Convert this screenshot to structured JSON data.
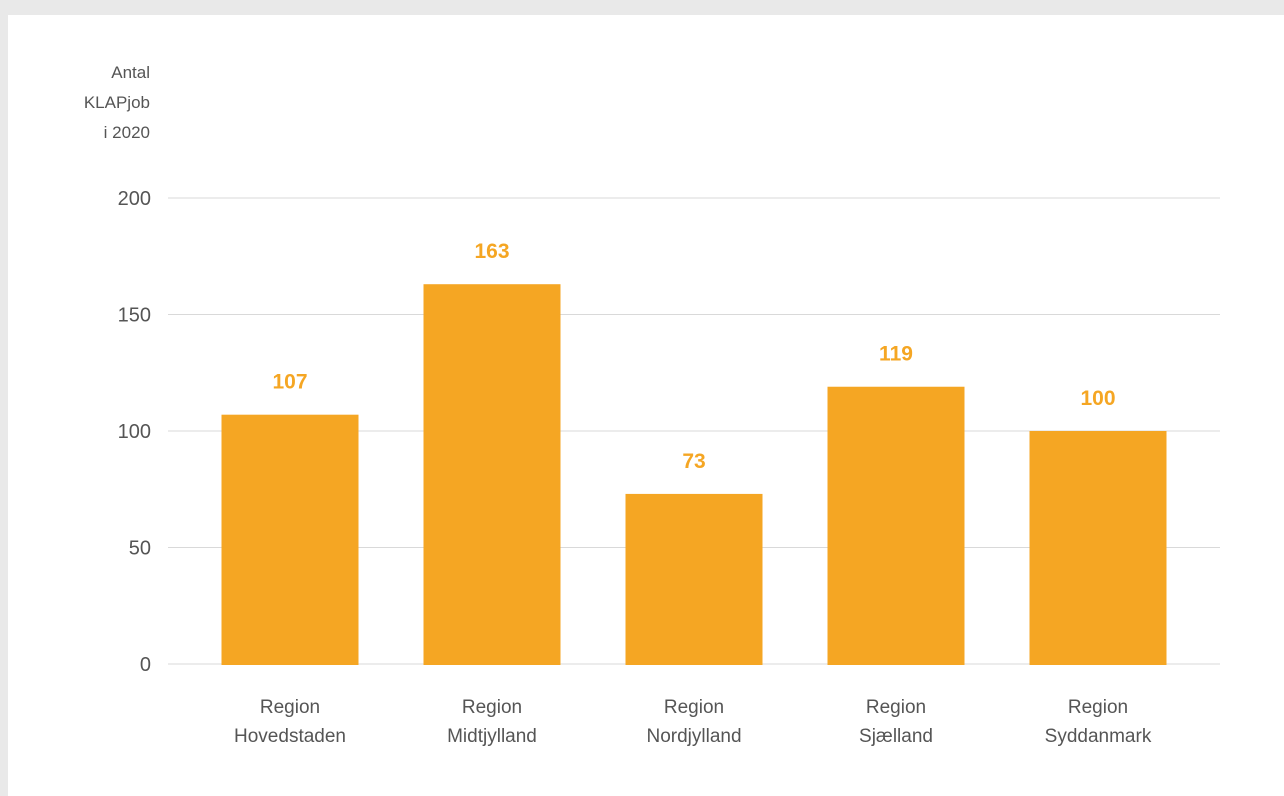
{
  "chart_data": {
    "type": "bar",
    "ylabel": [
      "Antal",
      "KLAPjob",
      "i 2020"
    ],
    "categories": [
      [
        "Region",
        "Hovedstaden"
      ],
      [
        "Region",
        "Midtjylland"
      ],
      [
        "Region",
        "Nordjylland"
      ],
      [
        "Region",
        "Sjælland"
      ],
      [
        "Region",
        "Syddanmark"
      ]
    ],
    "values": [
      107,
      163,
      73,
      119,
      100
    ],
    "data_labels": [
      "107",
      "163",
      "73",
      "119",
      "100"
    ],
    "yticks": [
      "0",
      "50",
      "100",
      "150",
      "200"
    ],
    "ylim": [
      0,
      200
    ],
    "grid": true,
    "colors": {
      "bar": "#f5a623",
      "label": "#f5a623",
      "grid": "#d9d9d9",
      "text": "#555555",
      "background": "#ffffff",
      "page": "#e9e9e9"
    }
  }
}
